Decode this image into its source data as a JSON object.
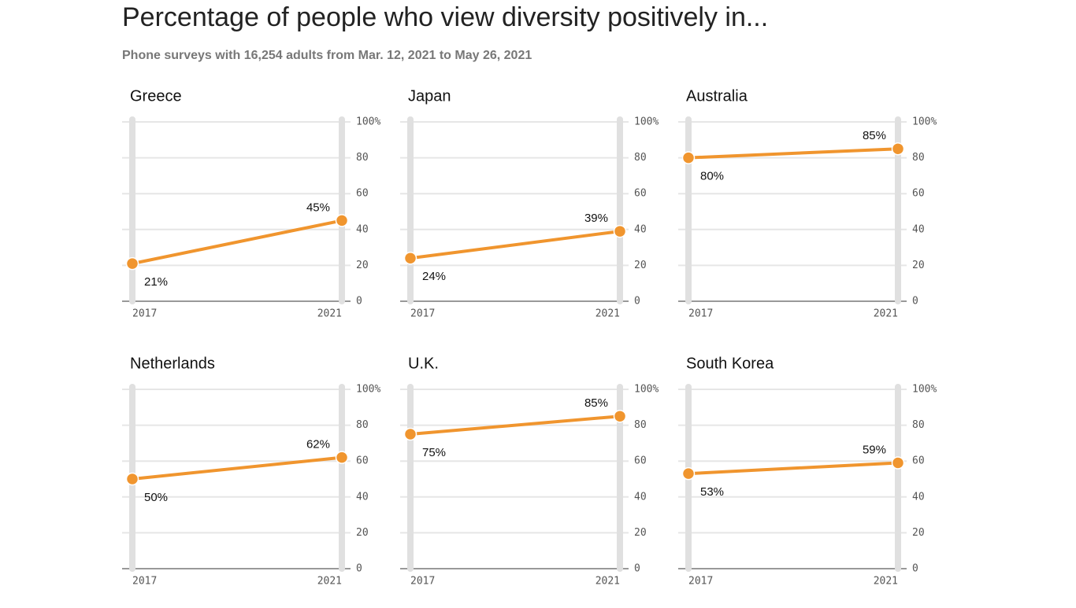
{
  "title": "Percentage of people who view diversity positively in...",
  "subtitle": "Phone surveys with 16,254 adults from Mar. 12, 2021 to May 26, 2021",
  "chart_data": [
    {
      "type": "line",
      "title": "Greece",
      "categories": [
        "2017",
        "2021"
      ],
      "values": [
        21,
        45
      ],
      "value_labels": [
        "21%",
        "45%"
      ],
      "color": "#f0952e",
      "ylim": [
        0,
        100
      ],
      "yticks": [
        0,
        20,
        40,
        60,
        80,
        {
          "value": 100,
          "label": "100%"
        }
      ],
      "grid": true
    },
    {
      "type": "line",
      "title": "Japan",
      "categories": [
        "2017",
        "2021"
      ],
      "values": [
        24,
        39
      ],
      "value_labels": [
        "24%",
        "39%"
      ],
      "color": "#f0952e",
      "ylim": [
        0,
        100
      ],
      "yticks": [
        0,
        20,
        40,
        60,
        80,
        {
          "value": 100,
          "label": "100%"
        }
      ],
      "grid": true
    },
    {
      "type": "line",
      "title": "Australia",
      "categories": [
        "2017",
        "2021"
      ],
      "values": [
        80,
        85
      ],
      "value_labels": [
        "80%",
        "85%"
      ],
      "color": "#f0952e",
      "ylim": [
        0,
        100
      ],
      "yticks": [
        0,
        20,
        40,
        60,
        80,
        {
          "value": 100,
          "label": "100%"
        }
      ],
      "grid": true
    },
    {
      "type": "line",
      "title": "Netherlands",
      "categories": [
        "2017",
        "2021"
      ],
      "values": [
        50,
        62
      ],
      "value_labels": [
        "50%",
        "62%"
      ],
      "color": "#f0952e",
      "ylim": [
        0,
        100
      ],
      "yticks": [
        0,
        20,
        40,
        60,
        80,
        {
          "value": 100,
          "label": "100%"
        }
      ],
      "grid": true
    },
    {
      "type": "line",
      "title": "U.K.",
      "categories": [
        "2017",
        "2021"
      ],
      "values": [
        75,
        85
      ],
      "value_labels": [
        "75%",
        "85%"
      ],
      "color": "#f0952e",
      "ylim": [
        0,
        100
      ],
      "yticks": [
        0,
        20,
        40,
        60,
        80,
        {
          "value": 100,
          "label": "100%"
        }
      ],
      "grid": true
    },
    {
      "type": "line",
      "title": "South Korea",
      "categories": [
        "2017",
        "2021"
      ],
      "values": [
        53,
        59
      ],
      "value_labels": [
        "53%",
        "59%"
      ],
      "color": "#f0952e",
      "ylim": [
        0,
        100
      ],
      "yticks": [
        0,
        20,
        40,
        60,
        80,
        {
          "value": 100,
          "label": "100%"
        }
      ],
      "grid": true
    }
  ]
}
